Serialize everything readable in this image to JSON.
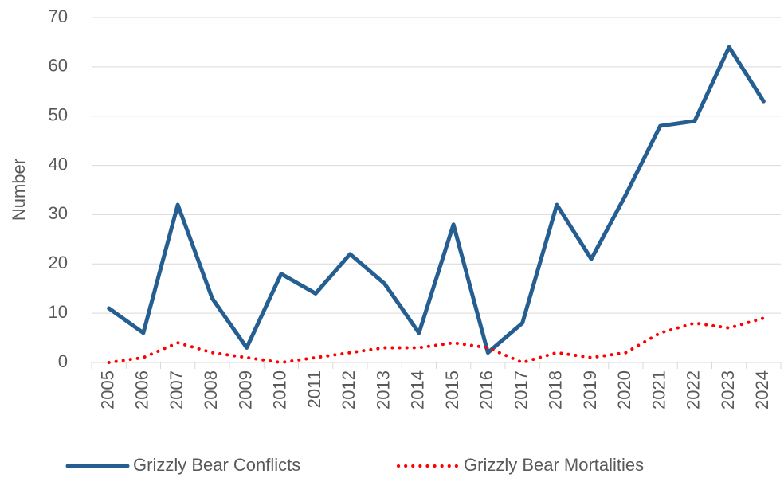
{
  "chart_data": {
    "type": "line",
    "y_label": "Number",
    "categories": [
      "2005",
      "2006",
      "2007",
      "2008",
      "2009",
      "2010",
      "2011",
      "2012",
      "2013",
      "2014",
      "2015",
      "2016",
      "2017",
      "2018",
      "2019",
      "2020",
      "2021",
      "2022",
      "2023",
      "2024"
    ],
    "series": [
      {
        "name": "Grizzly Bear Conflicts",
        "color": "#255e91",
        "dash": "solid",
        "values": [
          11,
          6,
          32,
          13,
          3,
          18,
          14,
          22,
          16,
          6,
          28,
          2,
          8,
          32,
          21,
          34,
          48,
          49,
          64,
          53
        ]
      },
      {
        "name": "Grizzly Bear Mortalities",
        "color": "#ff0000",
        "dash": "dotted",
        "values": [
          0,
          1,
          4,
          2,
          1,
          0,
          1,
          2,
          3,
          3,
          4,
          3,
          0,
          2,
          1,
          2,
          6,
          8,
          7,
          9
        ]
      }
    ],
    "ylim": [
      0,
      70
    ],
    "yticks": [
      0,
      10,
      20,
      30,
      40,
      50,
      60,
      70
    ],
    "grid": true,
    "legend": "bottom"
  }
}
